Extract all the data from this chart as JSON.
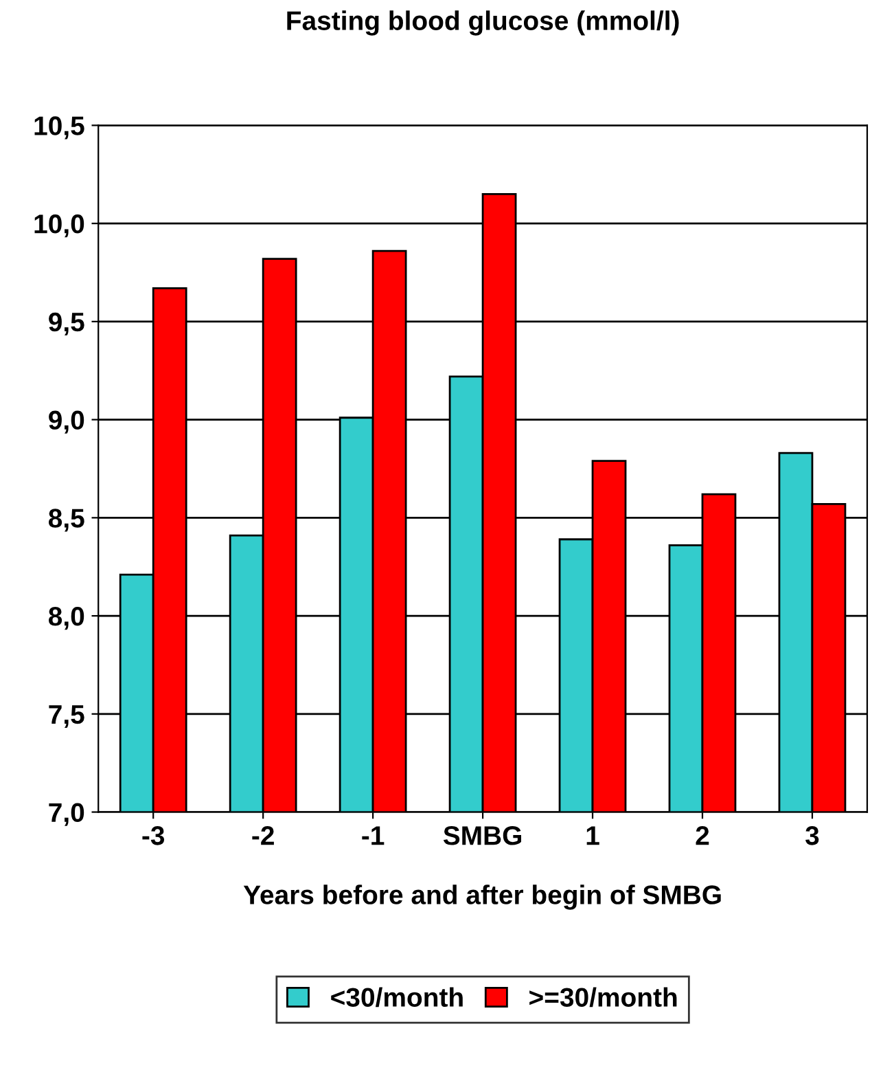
{
  "chart_data": {
    "type": "bar",
    "title": "Fasting blood glucose (mmol/l)",
    "xlabel": "Years before and after begin of SMBG",
    "categories": [
      "-3",
      "-2",
      "-1",
      "SMBG",
      "1",
      "2",
      "3"
    ],
    "series": [
      {
        "name": "<30/month",
        "color": "#33cccc",
        "values": [
          8.21,
          8.41,
          9.01,
          9.22,
          8.39,
          8.36,
          8.83
        ]
      },
      {
        "name": ">=30/month",
        "color": "#ff0000",
        "values": [
          9.67,
          9.82,
          9.86,
          10.15,
          8.79,
          8.62,
          8.57
        ]
      }
    ],
    "ylim": [
      7.0,
      10.5
    ],
    "yticks": [
      {
        "value": 7.0,
        "label": "7,0"
      },
      {
        "value": 7.5,
        "label": "7,5"
      },
      {
        "value": 8.0,
        "label": "8,0"
      },
      {
        "value": 8.5,
        "label": "8,5"
      },
      {
        "value": 9.0,
        "label": "9,0"
      },
      {
        "value": 9.5,
        "label": "9,5"
      },
      {
        "value": 10.0,
        "label": "10,0"
      },
      {
        "value": 10.5,
        "label": "10,5"
      }
    ],
    "grid": "y",
    "legend": "bottom"
  }
}
